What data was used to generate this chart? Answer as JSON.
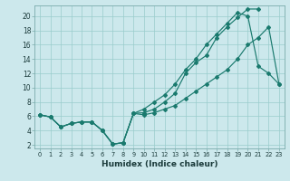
{
  "xlabel": "Humidex (Indice chaleur)",
  "bg_color": "#cce8ec",
  "grid_color": "#99cccc",
  "line_color": "#1a7a6e",
  "xlim_min": -0.5,
  "xlim_max": 23.5,
  "ylim_min": 1.5,
  "ylim_max": 21.5,
  "xticks": [
    0,
    1,
    2,
    3,
    4,
    5,
    6,
    7,
    8,
    9,
    10,
    11,
    12,
    13,
    14,
    15,
    16,
    17,
    18,
    19,
    20,
    21,
    22,
    23
  ],
  "yticks": [
    2,
    4,
    6,
    8,
    10,
    12,
    14,
    16,
    18,
    20
  ],
  "line1_x": [
    0,
    1,
    2,
    3,
    4,
    5,
    6,
    7,
    8,
    9,
    10,
    11,
    12,
    13,
    14,
    15,
    16,
    17,
    18,
    19,
    20,
    21
  ],
  "line1_y": [
    6.2,
    5.9,
    4.5,
    5.0,
    5.2,
    5.2,
    4.0,
    2.1,
    2.3,
    6.4,
    6.5,
    7.0,
    8.0,
    9.2,
    12.0,
    13.5,
    14.5,
    17.0,
    18.5,
    19.8,
    21.0,
    21.0
  ],
  "line2_x": [
    0,
    1,
    2,
    3,
    4,
    5,
    6,
    7,
    8,
    9,
    10,
    11,
    12,
    13,
    14,
    15,
    16,
    17,
    18,
    19,
    20,
    21,
    22,
    23
  ],
  "line2_y": [
    6.2,
    5.9,
    4.5,
    5.0,
    5.2,
    5.2,
    4.0,
    2.1,
    2.3,
    6.4,
    7.0,
    8.0,
    9.0,
    10.5,
    12.5,
    14.0,
    16.0,
    17.5,
    19.0,
    20.5,
    20.0,
    13.0,
    12.0,
    10.5
  ],
  "line3_x": [
    0,
    1,
    2,
    3,
    4,
    5,
    6,
    7,
    8,
    9,
    10,
    11,
    12,
    13,
    14,
    15,
    16,
    17,
    18,
    19,
    20,
    21,
    22,
    23
  ],
  "line3_y": [
    6.2,
    5.9,
    4.5,
    5.0,
    5.2,
    5.2,
    4.0,
    2.1,
    2.3,
    6.4,
    6.2,
    6.5,
    7.0,
    7.5,
    8.5,
    9.5,
    10.5,
    11.5,
    12.5,
    14.0,
    16.0,
    17.0,
    18.5,
    10.5
  ]
}
